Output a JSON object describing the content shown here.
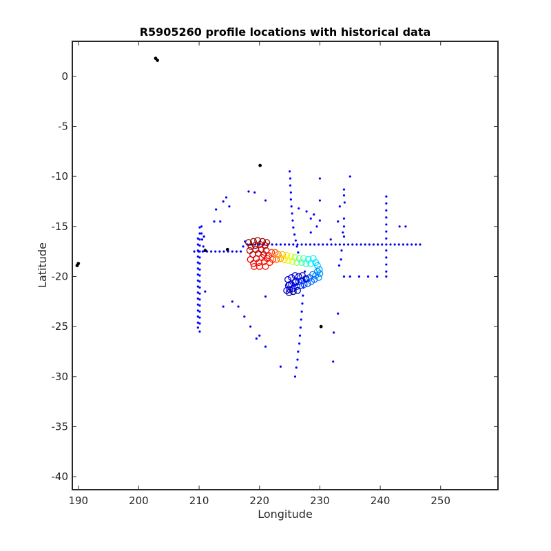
{
  "chart_data": {
    "type": "scatter",
    "title": "R5905260 profile locations with historical data",
    "xlabel": "Longitude",
    "ylabel": "Latitude",
    "xlim": [
      189,
      259.5
    ],
    "ylim": [
      -41.3,
      3.5
    ],
    "xticks": [
      190,
      200,
      210,
      220,
      230,
      240,
      250
    ],
    "yticks": [
      0,
      -5,
      -10,
      -15,
      -20,
      -25,
      -30,
      -35,
      -40
    ],
    "grid": false,
    "legend": "none",
    "colors": {
      "historical": "#0000ff",
      "land": "#000000",
      "colormap": [
        "#00008f",
        "#0000ff",
        "#0080ff",
        "#00ffff",
        "#80ff80",
        "#ffff00",
        "#ff8000",
        "#ff0000",
        "#800000"
      ]
    },
    "series": [
      {
        "marker": "dot",
        "points": [
          [
            209.8,
            -16.2
          ],
          [
            209.8,
            -16.8
          ],
          [
            209.8,
            -17.4
          ],
          [
            209.8,
            -18.0
          ],
          [
            209.8,
            -18.6
          ],
          [
            209.8,
            -19.2
          ],
          [
            209.8,
            -19.8
          ],
          [
            209.8,
            -20.4
          ],
          [
            209.8,
            -21.0
          ],
          [
            209.8,
            -21.6
          ],
          [
            209.8,
            -22.2
          ],
          [
            209.8,
            -22.8
          ],
          [
            209.8,
            -23.4
          ],
          [
            209.8,
            -24.0
          ],
          [
            209.8,
            -24.6
          ],
          [
            209.8,
            -25.1
          ],
          [
            210.1,
            -15.1
          ],
          [
            210.1,
            -15.7
          ],
          [
            210.1,
            -16.3
          ],
          [
            210.1,
            -16.9
          ],
          [
            210.1,
            -17.5
          ],
          [
            210.1,
            -18.1
          ],
          [
            210.1,
            -18.7
          ],
          [
            210.1,
            -19.3
          ],
          [
            210.1,
            -19.9
          ],
          [
            210.1,
            -20.5
          ],
          [
            210.1,
            -21.1
          ],
          [
            210.1,
            -21.7
          ],
          [
            210.1,
            -22.3
          ],
          [
            210.1,
            -22.9
          ],
          [
            210.1,
            -23.5
          ],
          [
            210.1,
            -24.1
          ],
          [
            210.1,
            -24.7
          ],
          [
            210.1,
            -25.5
          ],
          [
            210.4,
            -15.0
          ],
          [
            210.4,
            -15.7
          ],
          [
            210.5,
            -16.3
          ],
          [
            210.7,
            -17.0
          ],
          [
            210.8,
            -16.0
          ],
          [
            211.0,
            -21.5
          ],
          [
            209.2,
            -17.5
          ],
          [
            209.9,
            -17.5
          ],
          [
            210.6,
            -17.5
          ],
          [
            211.3,
            -17.5
          ],
          [
            212.0,
            -17.5
          ],
          [
            212.7,
            -17.5
          ],
          [
            213.4,
            -17.5
          ],
          [
            214.1,
            -17.5
          ],
          [
            214.8,
            -17.5
          ],
          [
            215.5,
            -17.5
          ],
          [
            216.2,
            -17.5
          ],
          [
            216.9,
            -17.5
          ],
          [
            217.3,
            -17.0
          ],
          [
            217.6,
            -16.5
          ],
          [
            218.0,
            -16.8
          ],
          [
            218.6,
            -16.8
          ],
          [
            219.3,
            -16.8
          ],
          [
            220.0,
            -16.8
          ],
          [
            220.7,
            -16.8
          ],
          [
            221.4,
            -16.8
          ],
          [
            222.1,
            -16.8
          ],
          [
            222.8,
            -16.8
          ],
          [
            223.5,
            -16.8
          ],
          [
            224.2,
            -16.8
          ],
          [
            224.9,
            -16.8
          ],
          [
            225.6,
            -16.8
          ],
          [
            226.3,
            -16.8
          ],
          [
            227.0,
            -16.8
          ],
          [
            227.7,
            -16.8
          ],
          [
            228.4,
            -16.8
          ],
          [
            229.1,
            -16.8
          ],
          [
            229.8,
            -16.8
          ],
          [
            230.5,
            -16.8
          ],
          [
            231.2,
            -16.8
          ],
          [
            231.9,
            -16.8
          ],
          [
            232.6,
            -16.8
          ],
          [
            233.3,
            -16.8
          ],
          [
            234.0,
            -16.8
          ],
          [
            234.7,
            -16.8
          ],
          [
            235.4,
            -16.8
          ],
          [
            236.1,
            -16.8
          ],
          [
            236.8,
            -16.8
          ],
          [
            237.5,
            -16.8
          ],
          [
            238.2,
            -16.8
          ],
          [
            238.9,
            -16.8
          ],
          [
            239.6,
            -16.8
          ],
          [
            240.3,
            -16.8
          ],
          [
            241.0,
            -16.8
          ],
          [
            241.7,
            -16.8
          ],
          [
            242.4,
            -16.8
          ],
          [
            243.1,
            -16.8
          ],
          [
            243.8,
            -16.8
          ],
          [
            244.5,
            -16.8
          ],
          [
            245.2,
            -16.8
          ],
          [
            245.9,
            -16.8
          ],
          [
            246.6,
            -16.8
          ],
          [
            225.0,
            -9.5
          ],
          [
            225.1,
            -10.2
          ],
          [
            225.1,
            -10.9
          ],
          [
            225.2,
            -11.6
          ],
          [
            225.2,
            -12.3
          ],
          [
            225.3,
            -13.0
          ],
          [
            225.4,
            -13.7
          ],
          [
            225.5,
            -14.4
          ],
          [
            225.6,
            -15.1
          ],
          [
            225.8,
            -15.8
          ],
          [
            226.0,
            -16.4
          ],
          [
            226.2,
            -17.0
          ],
          [
            226.4,
            -17.6
          ],
          [
            227.5,
            -19.5
          ],
          [
            227.4,
            -20.3
          ],
          [
            227.3,
            -21.1
          ],
          [
            227.2,
            -21.9
          ],
          [
            227.1,
            -22.7
          ],
          [
            227.0,
            -23.5
          ],
          [
            226.9,
            -24.3
          ],
          [
            226.8,
            -25.1
          ],
          [
            226.7,
            -25.9
          ],
          [
            226.6,
            -26.7
          ],
          [
            226.4,
            -27.5
          ],
          [
            226.3,
            -28.3
          ],
          [
            226.1,
            -29.1
          ],
          [
            225.9,
            -30.0
          ],
          [
            241.0,
            -12.0
          ],
          [
            241.0,
            -12.7
          ],
          [
            241.0,
            -13.4
          ],
          [
            241.0,
            -14.1
          ],
          [
            241.0,
            -14.8
          ],
          [
            241.0,
            -15.5
          ],
          [
            241.0,
            -16.2
          ],
          [
            241.0,
            -17.4
          ],
          [
            241.0,
            -18.1
          ],
          [
            241.0,
            -18.8
          ],
          [
            241.0,
            -19.5
          ],
          [
            241.0,
            -20.0
          ],
          [
            234.0,
            -11.3
          ],
          [
            234.0,
            -11.9
          ],
          [
            234.1,
            -12.6
          ],
          [
            234.0,
            -14.2
          ],
          [
            234.0,
            -15.0
          ],
          [
            233.8,
            -15.6
          ],
          [
            234.0,
            -16.0
          ],
          [
            233.6,
            -17.4
          ],
          [
            233.5,
            -18.3
          ],
          [
            233.2,
            -18.9
          ],
          [
            233.3,
            -13.0
          ],
          [
            233.0,
            -14.5
          ],
          [
            234.0,
            -20.0
          ],
          [
            235.0,
            -20.0
          ],
          [
            236.5,
            -20.0
          ],
          [
            238.0,
            -20.0
          ],
          [
            239.5,
            -20.0
          ],
          [
            235.0,
            -10.0
          ],
          [
            230.0,
            -10.2
          ],
          [
            230.0,
            -12.4
          ],
          [
            229.0,
            -13.8
          ],
          [
            230.0,
            -14.4
          ],
          [
            229.5,
            -15.0
          ],
          [
            228.5,
            -15.6
          ],
          [
            227.8,
            -13.5
          ],
          [
            228.5,
            -14.2
          ],
          [
            226.5,
            -13.2
          ],
          [
            231.8,
            -16.3
          ],
          [
            233.0,
            -23.7
          ],
          [
            232.3,
            -25.6
          ],
          [
            232.2,
            -28.5
          ],
          [
            243.2,
            -15.0
          ],
          [
            244.2,
            -15.0
          ],
          [
            214.5,
            -12.1
          ],
          [
            214.0,
            -12.5
          ],
          [
            212.8,
            -13.3
          ],
          [
            212.5,
            -14.5
          ],
          [
            213.5,
            -14.5
          ],
          [
            215.0,
            -13.0
          ],
          [
            218.2,
            -11.5
          ],
          [
            219.2,
            -11.6
          ],
          [
            221.0,
            -12.4
          ],
          [
            210.8,
            -16.0
          ],
          [
            215.5,
            -22.5
          ],
          [
            214.0,
            -23.0
          ],
          [
            216.5,
            -23.0
          ],
          [
            217.5,
            -24.0
          ],
          [
            218.5,
            -25.0
          ],
          [
            219.5,
            -26.2
          ],
          [
            220.0,
            -25.9
          ],
          [
            221.0,
            -27.0
          ],
          [
            223.5,
            -29.0
          ],
          [
            221.0,
            -22.0
          ]
        ]
      },
      {
        "marker": "land",
        "points": [
          [
            202.8,
            1.8
          ],
          [
            203.1,
            1.6
          ],
          [
            220.1,
            -8.9
          ],
          [
            189.8,
            -18.9
          ],
          [
            190.0,
            -18.7
          ],
          [
            211.0,
            -17.4
          ],
          [
            214.7,
            -17.3
          ],
          [
            230.2,
            -25.0
          ]
        ]
      },
      {
        "marker": "circle",
        "points": [
          [
            218.2,
            -16.6,
            1.0
          ],
          [
            218.6,
            -17.0,
            0.99
          ],
          [
            219.0,
            -16.5,
            0.99
          ],
          [
            219.3,
            -16.9,
            0.98
          ],
          [
            219.7,
            -16.4,
            0.98
          ],
          [
            220.1,
            -16.8,
            0.97
          ],
          [
            220.5,
            -16.5,
            0.97
          ],
          [
            220.9,
            -16.9,
            0.96
          ],
          [
            221.2,
            -16.6,
            0.96
          ],
          [
            218.4,
            -17.4,
            0.95
          ],
          [
            218.9,
            -17.8,
            0.95
          ],
          [
            219.4,
            -17.3,
            0.94
          ],
          [
            219.8,
            -17.7,
            0.94
          ],
          [
            220.3,
            -17.3,
            0.93
          ],
          [
            220.7,
            -17.8,
            0.93
          ],
          [
            221.1,
            -17.4,
            0.92
          ],
          [
            221.5,
            -17.9,
            0.92
          ],
          [
            218.5,
            -18.3,
            0.9
          ],
          [
            219.0,
            -18.7,
            0.9
          ],
          [
            219.5,
            -18.2,
            0.89
          ],
          [
            219.9,
            -18.6,
            0.89
          ],
          [
            220.4,
            -18.1,
            0.88
          ],
          [
            220.8,
            -18.5,
            0.88
          ],
          [
            221.3,
            -18.2,
            0.87
          ],
          [
            221.7,
            -18.6,
            0.87
          ],
          [
            219.1,
            -19.0,
            0.86
          ],
          [
            220.0,
            -19.0,
            0.86
          ],
          [
            221.0,
            -19.0,
            0.85
          ],
          [
            222.0,
            -17.6,
            0.84
          ],
          [
            222.2,
            -18.3,
            0.83
          ],
          [
            222.6,
            -17.6,
            0.79
          ],
          [
            222.8,
            -18.3,
            0.77
          ],
          [
            223.1,
            -17.8,
            0.74
          ],
          [
            223.5,
            -18.2,
            0.72
          ],
          [
            223.8,
            -17.8,
            0.7
          ],
          [
            224.1,
            -18.3,
            0.67
          ],
          [
            224.5,
            -17.9,
            0.65
          ],
          [
            224.8,
            -18.4,
            0.62
          ],
          [
            225.2,
            -18.0,
            0.6
          ],
          [
            225.5,
            -18.5,
            0.57
          ],
          [
            225.9,
            -18.1,
            0.54
          ],
          [
            226.2,
            -18.6,
            0.52
          ],
          [
            226.6,
            -18.2,
            0.49
          ],
          [
            227.0,
            -18.6,
            0.47
          ],
          [
            227.3,
            -18.2,
            0.45
          ],
          [
            227.7,
            -18.7,
            0.42
          ],
          [
            228.1,
            -18.3,
            0.4
          ],
          [
            228.5,
            -18.7,
            0.38
          ],
          [
            228.9,
            -18.2,
            0.36
          ],
          [
            229.3,
            -18.6,
            0.34
          ],
          [
            229.6,
            -18.9,
            0.32
          ],
          [
            229.9,
            -19.3,
            0.29
          ],
          [
            230.0,
            -19.7,
            0.28
          ],
          [
            229.8,
            -20.1,
            0.27
          ],
          [
            229.6,
            -19.5,
            0.26
          ],
          [
            229.3,
            -19.9,
            0.25
          ],
          [
            229.1,
            -20.3,
            0.24
          ],
          [
            228.8,
            -19.8,
            0.24
          ],
          [
            228.6,
            -20.5,
            0.23
          ],
          [
            228.3,
            -20.1,
            0.22
          ],
          [
            228.0,
            -20.7,
            0.21
          ],
          [
            227.7,
            -20.3,
            0.2
          ],
          [
            227.4,
            -20.8,
            0.19
          ],
          [
            227.1,
            -20.4,
            0.18
          ],
          [
            226.8,
            -20.9,
            0.17
          ],
          [
            226.5,
            -20.5,
            0.16
          ],
          [
            226.2,
            -21.0,
            0.15
          ],
          [
            225.9,
            -20.6,
            0.14
          ],
          [
            225.6,
            -21.2,
            0.13
          ],
          [
            225.3,
            -20.8,
            0.12
          ],
          [
            225.0,
            -21.3,
            0.11
          ],
          [
            224.8,
            -20.9,
            0.1
          ],
          [
            224.5,
            -21.4,
            0.09
          ],
          [
            224.7,
            -20.3,
            0.09
          ],
          [
            225.3,
            -20.1,
            0.08
          ],
          [
            225.9,
            -19.9,
            0.07
          ],
          [
            226.5,
            -20.0,
            0.06
          ],
          [
            227.1,
            -19.9,
            0.06
          ],
          [
            227.7,
            -20.2,
            0.05
          ],
          [
            226.0,
            -20.5,
            0.04
          ],
          [
            225.0,
            -20.8,
            0.03
          ],
          [
            225.6,
            -21.5,
            0.02
          ],
          [
            226.3,
            -21.4,
            0.01
          ],
          [
            224.9,
            -21.6,
            0.0
          ]
        ]
      }
    ]
  }
}
